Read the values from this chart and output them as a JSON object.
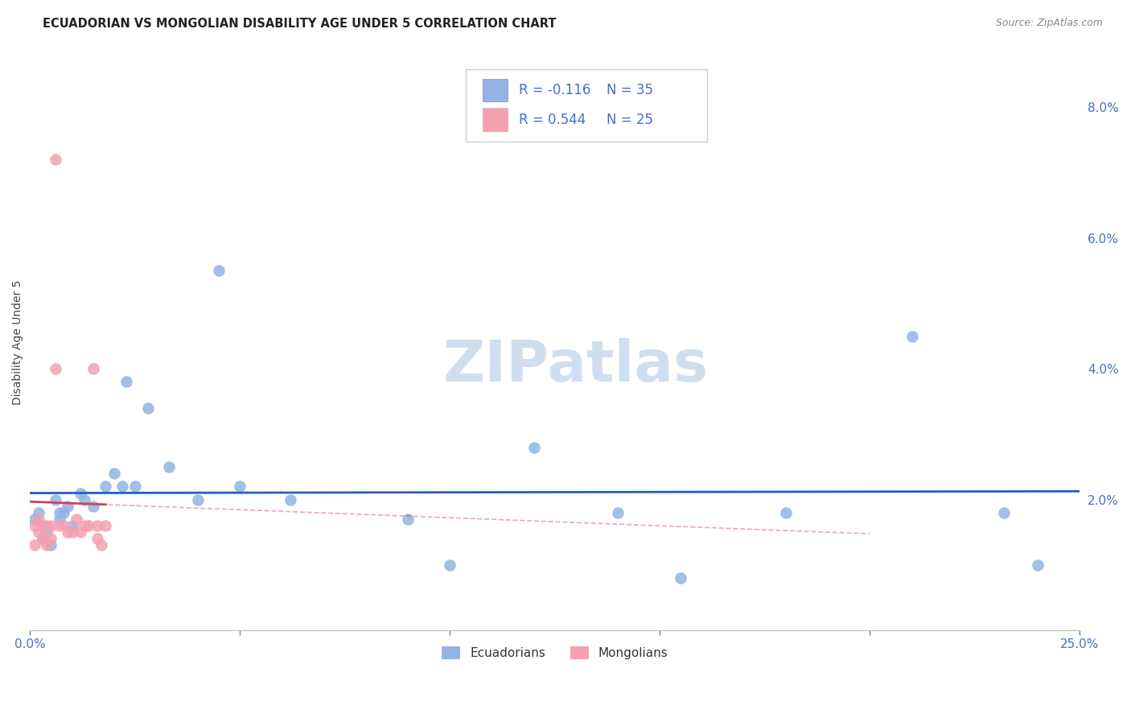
{
  "title": "ECUADORIAN VS MONGOLIAN DISABILITY AGE UNDER 5 CORRELATION CHART",
  "source": "Source: ZipAtlas.com",
  "ylabel": "Disability Age Under 5",
  "xlim": [
    0,
    0.25
  ],
  "ylim": [
    0,
    0.088
  ],
  "xtick_pos": [
    0.0,
    0.05,
    0.1,
    0.15,
    0.2,
    0.25
  ],
  "xtick_labels": [
    "0.0%",
    "",
    "",
    "",
    "",
    "25.0%"
  ],
  "ytick_pos": [
    0.0,
    0.02,
    0.04,
    0.06,
    0.08
  ],
  "ytick_labels": [
    "",
    "2.0%",
    "4.0%",
    "6.0%",
    "8.0%"
  ],
  "r_ecu": -0.116,
  "n_ecu": 35,
  "r_mon": 0.544,
  "n_mon": 25,
  "ecu_color": "#92b4e3",
  "mon_color": "#f4a0b0",
  "ecu_line_color": "#2060c0",
  "mon_line_color": "#d44060",
  "background_color": "#ffffff",
  "ecu_x": [
    0.001,
    0.002,
    0.003,
    0.003,
    0.004,
    0.005,
    0.006,
    0.007,
    0.007,
    0.008,
    0.009,
    0.01,
    0.012,
    0.013,
    0.015,
    0.018,
    0.02,
    0.022,
    0.023,
    0.025,
    0.028,
    0.033,
    0.04,
    0.045,
    0.05,
    0.062,
    0.09,
    0.1,
    0.12,
    0.14,
    0.155,
    0.18,
    0.21,
    0.232,
    0.24
  ],
  "ecu_y": [
    0.017,
    0.018,
    0.014,
    0.016,
    0.015,
    0.013,
    0.02,
    0.018,
    0.017,
    0.018,
    0.019,
    0.016,
    0.021,
    0.02,
    0.019,
    0.022,
    0.024,
    0.022,
    0.038,
    0.022,
    0.034,
    0.025,
    0.02,
    0.055,
    0.022,
    0.02,
    0.017,
    0.01,
    0.028,
    0.018,
    0.008,
    0.018,
    0.045,
    0.018,
    0.01
  ],
  "mon_x": [
    0.001,
    0.001,
    0.002,
    0.002,
    0.003,
    0.003,
    0.004,
    0.004,
    0.005,
    0.005,
    0.006,
    0.006,
    0.007,
    0.008,
    0.009,
    0.01,
    0.011,
    0.012,
    0.013,
    0.014,
    0.015,
    0.016,
    0.016,
    0.017,
    0.018
  ],
  "mon_y": [
    0.013,
    0.016,
    0.015,
    0.017,
    0.014,
    0.016,
    0.016,
    0.013,
    0.016,
    0.014,
    0.072,
    0.04,
    0.016,
    0.016,
    0.015,
    0.015,
    0.017,
    0.015,
    0.016,
    0.016,
    0.04,
    0.014,
    0.016,
    0.013,
    0.016
  ],
  "watermark": "ZIPatlas",
  "watermark_color": "#d0dff0",
  "grid_color": "#cccccc",
  "title_fontsize": 10.5,
  "source_fontsize": 9,
  "axis_fontsize": 11,
  "legend_fontsize": 12
}
